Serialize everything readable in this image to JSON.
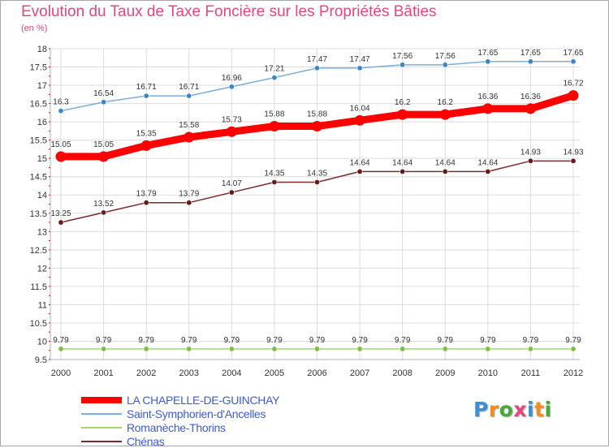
{
  "title": "Evolution du Taux de Taxe Foncière sur les Propriétés Bâties",
  "unit": "(en %)",
  "logo": {
    "text": "Proxiti",
    "letters": [
      "P",
      "r",
      "o",
      "x",
      "i",
      "t",
      "i"
    ],
    "colors": [
      "#3a8fd6",
      "#f28c1e",
      "#46a93a",
      "#e8457a",
      "#3a8fd6",
      "#f28c1e",
      "#46a93a"
    ]
  },
  "colors": {
    "title": "#e8457a",
    "grid": "#dcdcdc",
    "axis_ticks": "#ff0000"
  },
  "chart_data": {
    "type": "line",
    "title": "Evolution du Taux de Taxe Foncière sur les Propriétés Bâties",
    "ylabel": "(en %)",
    "xlabel": "",
    "categories": [
      "2000",
      "2001",
      "2002",
      "2003",
      "2004",
      "2005",
      "2006",
      "2007",
      "2008",
      "2009",
      "2010",
      "2011",
      "2012"
    ],
    "ylim": [
      9.5,
      18
    ],
    "yticks": [
      "9.5",
      "10",
      "10.5",
      "11",
      "11.5",
      "12",
      "12.5",
      "13",
      "13.5",
      "14",
      "14.5",
      "15",
      "15.5",
      "16",
      "16.5",
      "17",
      "17.5",
      "18"
    ],
    "grid": true,
    "legend_position": "bottom-left",
    "series": [
      {
        "name": "LA CHAPELLE-DE-GUINCHAY",
        "color": "#ff0000",
        "marker_color": "#ff0000",
        "thick": true,
        "values": [
          15.05,
          15.05,
          15.35,
          15.58,
          15.73,
          15.88,
          15.88,
          16.04,
          16.2,
          16.2,
          16.36,
          16.36,
          16.72
        ],
        "labels": [
          "15.05",
          "15.05",
          "15.35",
          "15.58",
          "15.73",
          "15.88",
          "15.88",
          "16.04",
          "16.2",
          "16.2",
          "16.36",
          "16.36",
          "16.72"
        ]
      },
      {
        "name": "Saint-Symphorien-d'Ancelles",
        "color": "#7aaedb",
        "marker_color": "#3a86c8",
        "thick": false,
        "values": [
          16.3,
          16.54,
          16.71,
          16.71,
          16.96,
          17.21,
          17.47,
          17.47,
          17.56,
          17.56,
          17.65,
          17.65,
          17.65
        ],
        "labels": [
          "16.3",
          "16.54",
          "16.71",
          "16.71",
          "16.96",
          "17.21",
          "17.47",
          "17.47",
          "17.56",
          "17.56",
          "17.65",
          "17.65",
          "17.65"
        ]
      },
      {
        "name": "Romanèche-Thorins",
        "color": "#9ed86a",
        "marker_color": "#7cc23a",
        "thick": false,
        "values": [
          9.79,
          9.79,
          9.79,
          9.79,
          9.79,
          9.79,
          9.79,
          9.79,
          9.79,
          9.79,
          9.79,
          9.79,
          9.79
        ],
        "labels": [
          "9.79",
          "9.79",
          "9.79",
          "9.79",
          "9.79",
          "9.79",
          "9.79",
          "9.79",
          "9.79",
          "9.79",
          "9.79",
          "9.79",
          "9.79"
        ]
      },
      {
        "name": "Chénas",
        "color": "#7a2a2a",
        "marker_color": "#6a1818",
        "thick": false,
        "values": [
          13.25,
          13.52,
          13.79,
          13.79,
          14.07,
          14.35,
          14.35,
          14.64,
          14.64,
          14.64,
          14.64,
          14.93,
          14.93
        ],
        "labels": [
          "13.25",
          "13.52",
          "13.79",
          "13.79",
          "14.07",
          "14.35",
          "14.35",
          "14.64",
          "14.64",
          "14.64",
          "14.64",
          "14.93",
          "14.93"
        ]
      }
    ]
  },
  "legend": [
    {
      "label": "LA CHAPELLE-DE-GUINCHAY",
      "color": "#ff0000",
      "text_color": "#3b5bdb",
      "thick": true
    },
    {
      "label": "Saint-Symphorien-d'Ancelles",
      "color": "#7aaedb",
      "text_color": "#3b5bdb",
      "thick": false
    },
    {
      "label": "Romanèche-Thorins",
      "color": "#9ed86a",
      "text_color": "#3b5bdb",
      "thick": false
    },
    {
      "label": "Chénas",
      "color": "#7a2a2a",
      "text_color": "#3b5bdb",
      "thick": false
    }
  ]
}
